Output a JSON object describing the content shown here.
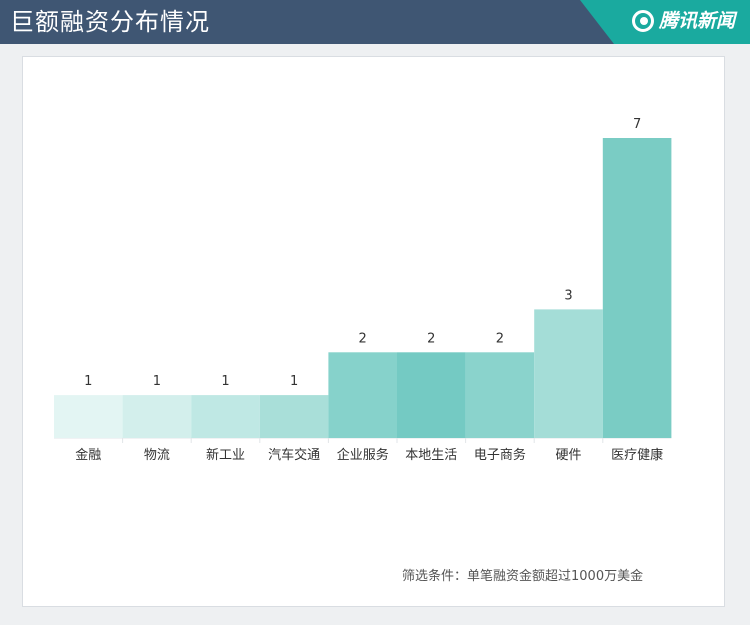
{
  "header": {
    "title": "巨额融资分布情况",
    "brand": "腾讯新闻",
    "brand_icon": "tencent-news-logo-icon"
  },
  "colors": {
    "header_bg": "#3f5673",
    "brand_bg": "#1aaa9f"
  },
  "chart_data": {
    "type": "bar",
    "title": "巨额融资分布情况",
    "categories": [
      "金融",
      "物流",
      "新工业",
      "汽车交通",
      "企业服务",
      "本地生活",
      "电子商务",
      "硬件",
      "医疗健康"
    ],
    "values": [
      1,
      1,
      1,
      1,
      2,
      2,
      2,
      3,
      7
    ],
    "data_labels": [
      "1",
      "1",
      "1",
      "1",
      "2",
      "2",
      "2",
      "3",
      "7"
    ],
    "bar_colors": [
      "#e3f5f3",
      "#d3efec",
      "#bfe8e4",
      "#a9dfd9",
      "#86d2cb",
      "#74cac3",
      "#8ad3cc",
      "#a4ddd7",
      "#7accc4"
    ],
    "ylim": [
      0,
      7
    ],
    "grid": false,
    "legend": "none",
    "xlabel": "",
    "ylabel": ""
  },
  "footnote": "筛选条件：单笔融资金额超过1000万美金"
}
